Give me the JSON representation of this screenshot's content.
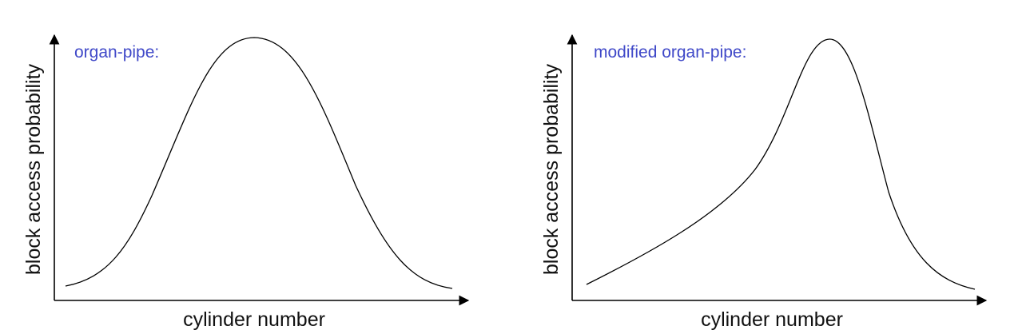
{
  "panels": [
    {
      "title": "organ-pipe:",
      "xlabel": "cylinder number",
      "ylabel": "block access probability",
      "shape": "symmetric bell curve"
    },
    {
      "title": "modified organ-pipe:",
      "xlabel": "cylinder number",
      "ylabel": "block access probability",
      "shape": "skewed peak"
    }
  ],
  "colors": {
    "title": "#3f48c8",
    "axis": "#000000",
    "curve": "#000000"
  }
}
